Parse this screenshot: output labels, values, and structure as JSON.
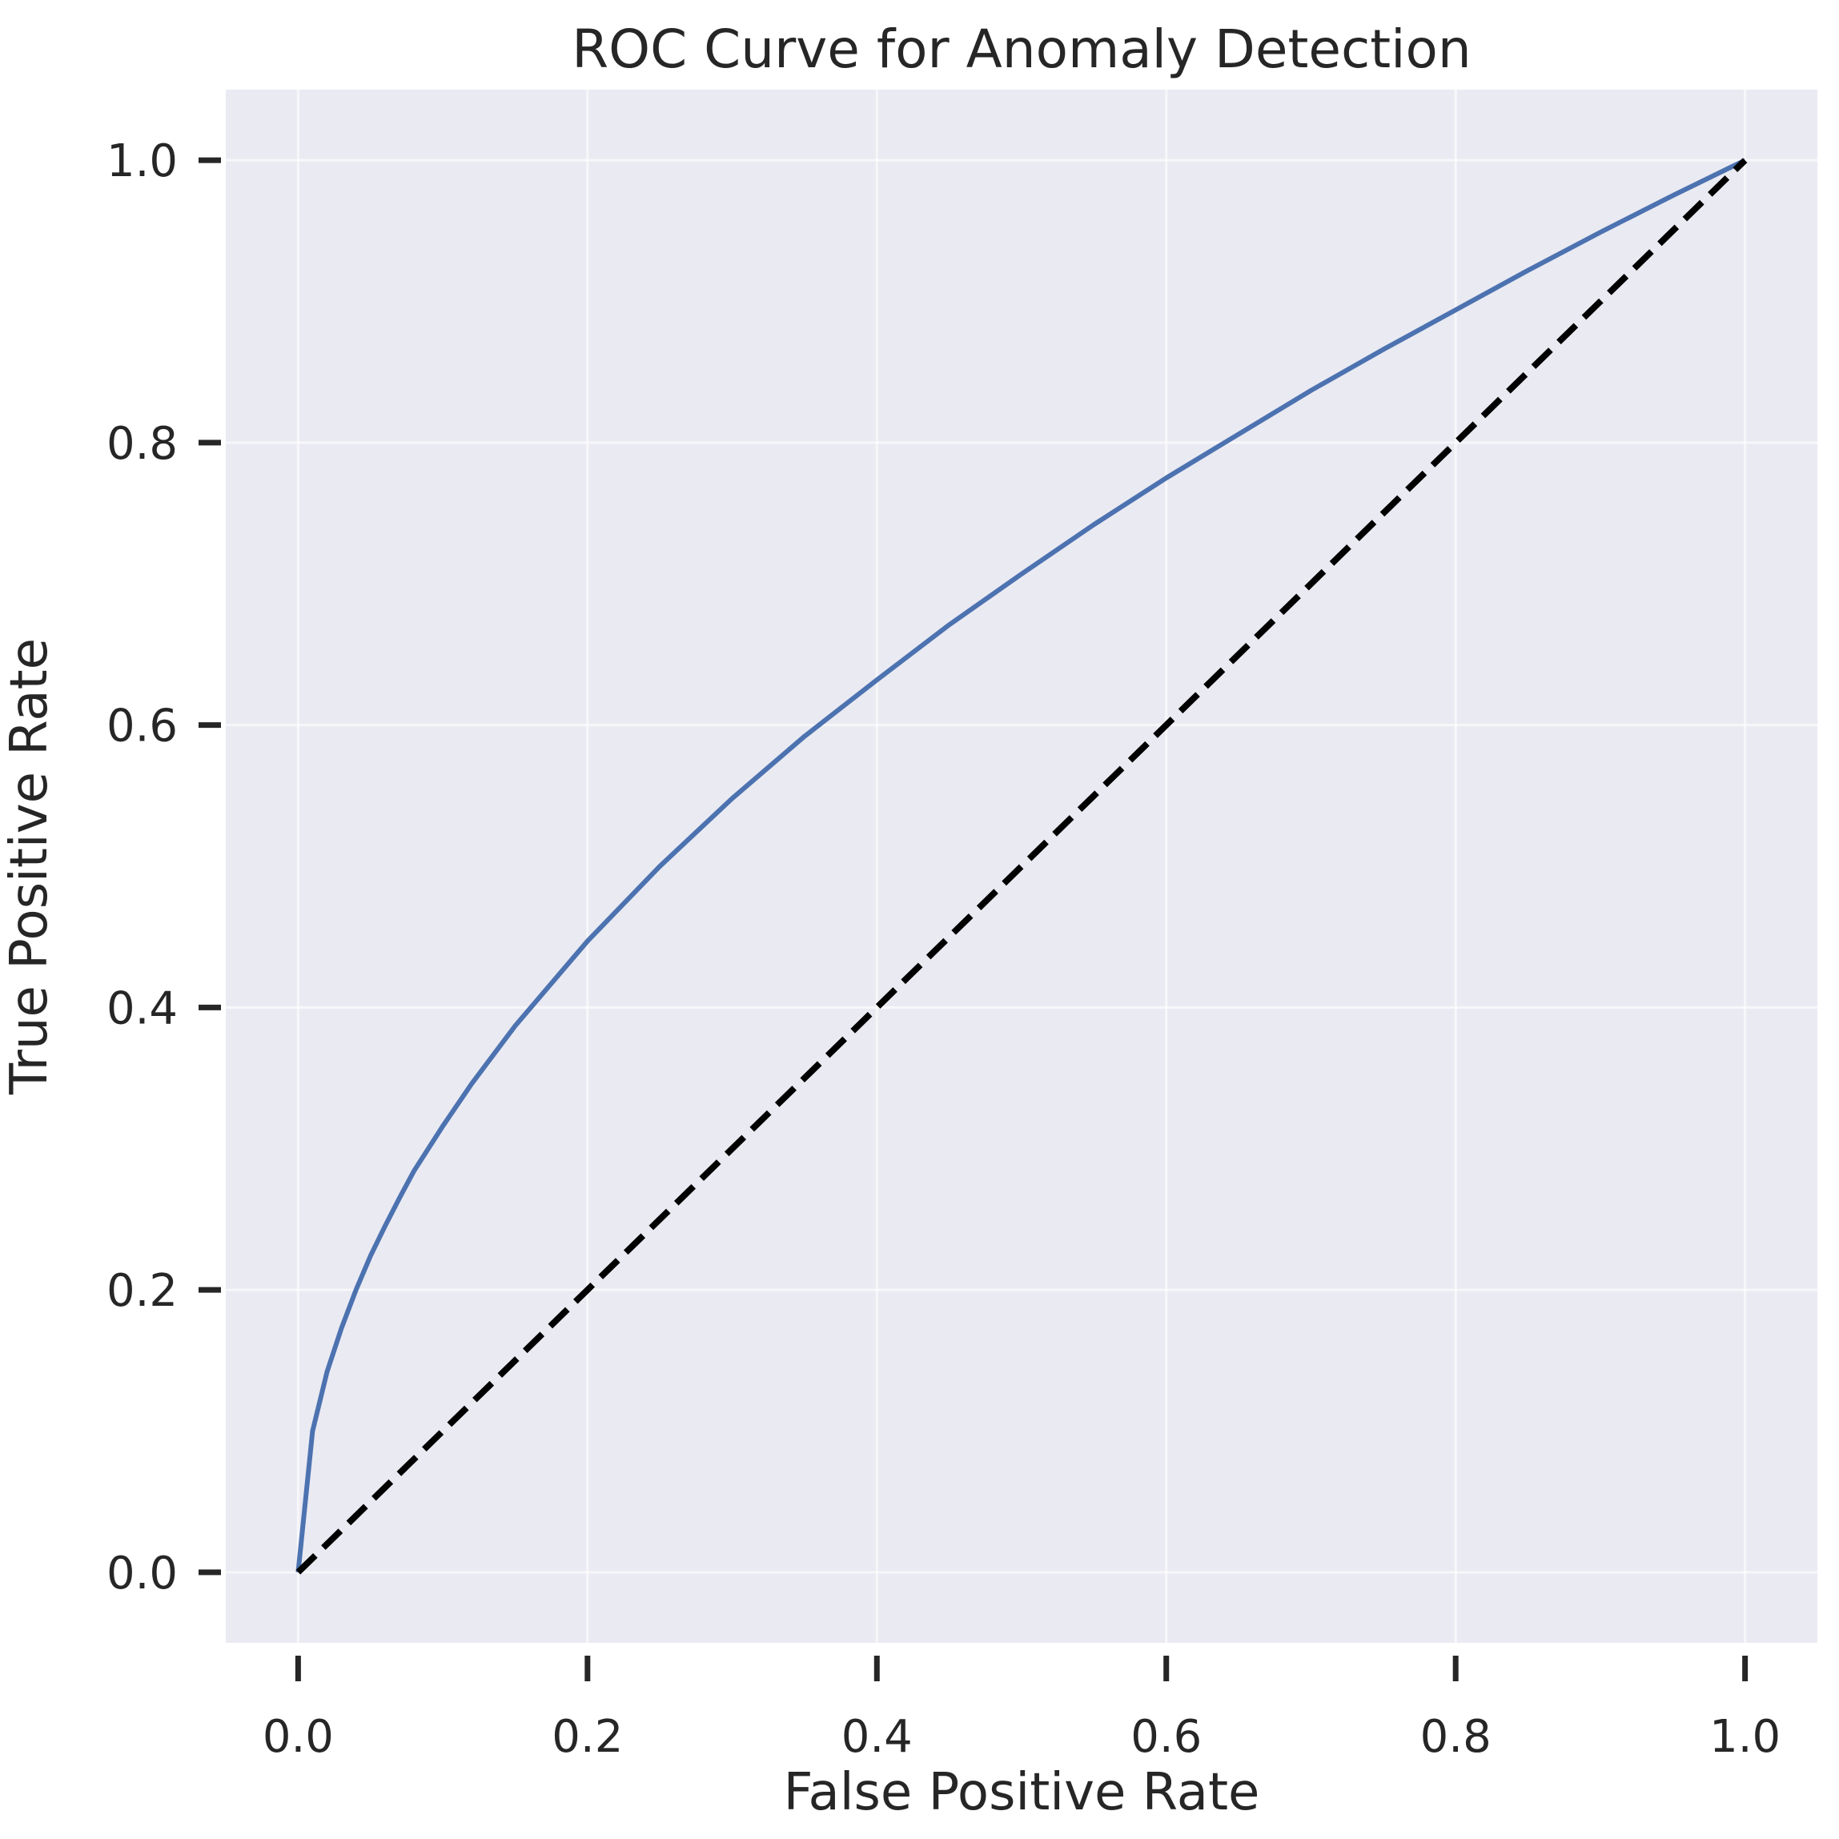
{
  "chart_data": {
    "type": "line",
    "title": "ROC Curve for Anomaly Detection",
    "xlabel": "False Positive Rate",
    "ylabel": "True Positive Rate",
    "xlim": [
      -0.05,
      1.05
    ],
    "ylim": [
      -0.05,
      1.05
    ],
    "xticks": [
      0.0,
      0.2,
      0.4,
      0.6,
      0.8,
      1.0
    ],
    "xtick_labels": [
      "0.0",
      "0.2",
      "0.4",
      "0.6",
      "0.8",
      "1.0"
    ],
    "yticks": [
      0.0,
      0.2,
      0.4,
      0.6,
      0.8,
      1.0
    ],
    "ytick_labels": [
      "0.0",
      "0.2",
      "0.4",
      "0.6",
      "0.8",
      "1.0"
    ],
    "grid": true,
    "background": "#eaeaf2",
    "series": [
      {
        "color": "#4c72b0",
        "style": "solid",
        "x": [
          0.0,
          0.01,
          0.02,
          0.03,
          0.04,
          0.05,
          0.06,
          0.07,
          0.08,
          0.1,
          0.12,
          0.15,
          0.2,
          0.25,
          0.3,
          0.35,
          0.4,
          0.45,
          0.5,
          0.55,
          0.6,
          0.65,
          0.7,
          0.75,
          0.8,
          0.85,
          0.9,
          0.95,
          1.0
        ],
        "y": [
          0.0,
          0.1,
          0.142,
          0.173,
          0.2,
          0.224,
          0.245,
          0.265,
          0.284,
          0.316,
          0.346,
          0.387,
          0.447,
          0.5,
          0.548,
          0.592,
          0.632,
          0.671,
          0.707,
          0.742,
          0.775,
          0.806,
          0.837,
          0.866,
          0.894,
          0.922,
          0.949,
          0.975,
          1.0
        ]
      },
      {
        "color": "#000000",
        "style": "dashed",
        "x": [
          0.0,
          1.0
        ],
        "y": [
          0.0,
          1.0
        ]
      }
    ]
  }
}
